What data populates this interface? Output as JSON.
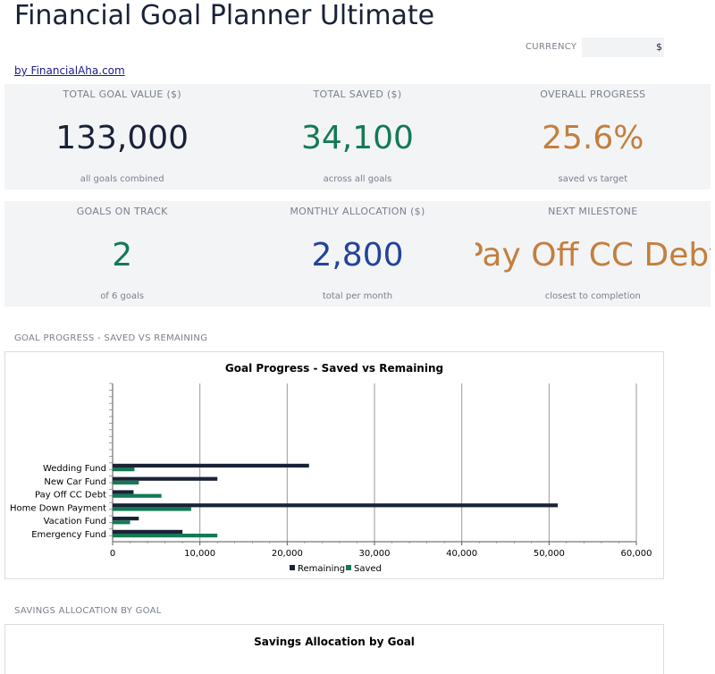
{
  "header": {
    "title": "Financial Goal Planner Ultimate",
    "byline": "by FinancialAha.com",
    "currency_label": "CURRENCY",
    "currency_value": "$"
  },
  "kpis_row1": [
    {
      "label": "TOTAL GOAL VALUE ($)",
      "value": "133,000",
      "sub": "all goals combined",
      "color": "#1a2238"
    },
    {
      "label": "TOTAL SAVED ($)",
      "value": "34,100",
      "sub": "across all goals",
      "color": "#137a55"
    },
    {
      "label": "OVERALL PROGRESS",
      "value": "25.6%",
      "sub": "saved vs target",
      "color": "#c37f3e"
    }
  ],
  "kpis_row2": [
    {
      "label": "GOALS ON TRACK",
      "value": "2",
      "sub": "of 6 goals",
      "color": "#137a55"
    },
    {
      "label": "MONTHLY ALLOCATION ($)",
      "value": "2,800",
      "sub": "total per month",
      "color": "#24439a"
    },
    {
      "label": "NEXT MILESTONE",
      "value": "Pay Off CC Debt",
      "sub": "closest to completion",
      "color": "#c37f3e"
    }
  ],
  "sections": {
    "goal_progress_label": "GOAL PROGRESS - SAVED VS REMAINING",
    "savings_allocation_label": "SAVINGS ALLOCATION BY GOAL"
  },
  "chart_data": [
    {
      "type": "bar",
      "orientation": "horizontal",
      "title": "Goal Progress - Saved vs Remaining",
      "categories": [
        "Wedding Fund",
        "New Car Fund",
        "Pay Off CC Debt",
        "Home Down Payment",
        "Vacation Fund",
        "Emergency Fund"
      ],
      "series": [
        {
          "name": "Remaining",
          "color": "#1a2238",
          "values": [
            22500,
            12000,
            2400,
            51000,
            3000,
            8000
          ]
        },
        {
          "name": "Saved",
          "color": "#137a55",
          "values": [
            2500,
            3000,
            5600,
            9000,
            2000,
            12000
          ]
        }
      ],
      "xlim": [
        0,
        60000
      ],
      "xticks": [
        "0",
        "10,000",
        "20,000",
        "30,000",
        "40,000",
        "50,000",
        "60,000"
      ],
      "grid": true,
      "legend": "bottom"
    },
    {
      "type": "pie",
      "title": "Savings Allocation by Goal"
    }
  ]
}
